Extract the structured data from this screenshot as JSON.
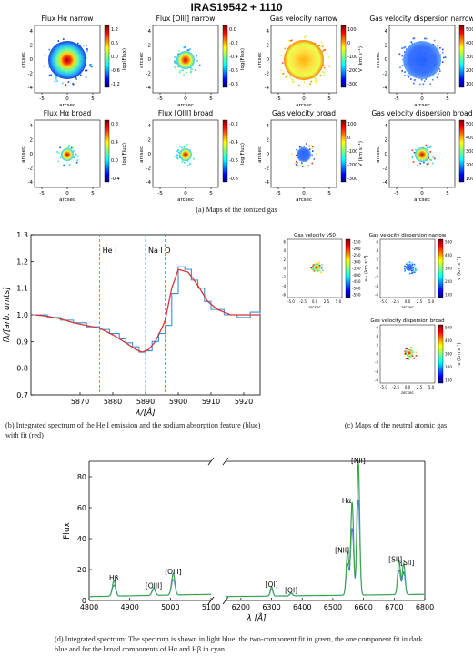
{
  "title": "IRAS19542 + 1110",
  "ionized_maps": [
    {
      "title": "Flux Hα narrow",
      "cbar_label": "log(Flux)",
      "ticks": [
        "1.2",
        "0.6",
        "0.0",
        "-0.6",
        "-1.2"
      ],
      "cmap": "jet"
    },
    {
      "title": "Flux [OIII] narrow",
      "cbar_label": "log(Flux)",
      "ticks": [
        "0.0",
        "-0.2",
        "-0.4",
        "-0.6",
        "-0.8"
      ],
      "cmap": "jet"
    },
    {
      "title": "Gas velocity narrow",
      "cbar_label": "V (km s⁻¹)",
      "ticks": [
        "100",
        "0",
        "-100",
        "-200",
        "-300"
      ],
      "cmap": "jet"
    },
    {
      "title": "Gas velocity dispersion narrow",
      "cbar_label": "σ (km s⁻¹)",
      "ticks": [
        "500",
        "400",
        "300",
        "200",
        "100"
      ],
      "cmap": "jet"
    },
    {
      "title": "Flux Hα broad",
      "cbar_label": "log(Flux)",
      "ticks": [
        "0.8",
        "0.4",
        "0.0",
        "-0.4"
      ],
      "cmap": "jet"
    },
    {
      "title": "Flux [OIII] broad",
      "cbar_label": "log(Flux)",
      "ticks": [
        "-0.2",
        "-0.4",
        "-0.6",
        "-0.8"
      ],
      "cmap": "jet"
    },
    {
      "title": "Gas velocity broad",
      "cbar_label": "V (km s⁻¹)",
      "ticks": [
        "100",
        "0",
        "-100",
        "-200",
        "-300"
      ],
      "cmap": "jet"
    },
    {
      "title": "Gas velocity dispersion broad",
      "cbar_label": "σ (km s⁻¹)",
      "ticks": [
        "500",
        "400",
        "300",
        "200",
        "100"
      ],
      "cmap": "jet"
    }
  ],
  "map_axes": {
    "xlabel": "arcsec",
    "ylabel": "arcsec",
    "xticks": [
      "-5",
      "0",
      "5"
    ],
    "yticks": [
      "4",
      "2",
      "0",
      "-2",
      "-4"
    ]
  },
  "caption_a": "(a) Maps of the ionized gas",
  "spectrum_b": {
    "xlabel": "λ/[Å]",
    "ylabel": "fλ/[arb. units]",
    "xticks": [
      "5870",
      "5880",
      "5890",
      "5900",
      "5910",
      "5920"
    ],
    "yticks": [
      "0.7",
      "0.8",
      "0.9",
      "1.0",
      "1.1",
      "1.2",
      "1.3"
    ],
    "lines": [
      {
        "label": "He I",
        "x": 5876
      },
      {
        "label": "Na I D",
        "x": 5890
      },
      {
        "label": "",
        "x": 5896
      }
    ]
  },
  "caption_b": "(b) Integrated spectrum of the He I emission and the sodium absorption feature (blue) with fit (red)",
  "neutral_maps": [
    {
      "title": "Gas velocity v50",
      "cbar_label": "v₅₀ (km s⁻¹)",
      "ticks": [
        "-150",
        "-200",
        "-250",
        "-300",
        "-350",
        "-400",
        "-450",
        "-500",
        "-550"
      ],
      "cmap": "jet"
    },
    {
      "title": "Gas velocity dispersion narrow",
      "cbar_label": "σ (km s⁻¹)",
      "ticks": [
        "500",
        "400",
        "300",
        "200",
        "100"
      ],
      "cmap": "jet"
    },
    {
      "title": "Gas velocity dispersion broad",
      "cbar_label": "σ (km s⁻¹)",
      "ticks": [
        "500",
        "400",
        "300",
        "200",
        "100"
      ],
      "cmap": "jet"
    }
  ],
  "neutral_axes": {
    "xlabel": "arcsec",
    "xticks": [
      "-5.0",
      "-2.5",
      "0.0",
      "2.5",
      "5.0"
    ],
    "yticks": [
      "6",
      "4",
      "2",
      "0",
      "-2",
      "-4",
      "-6"
    ]
  },
  "caption_c": "(c) Maps of the neutral atomic gas",
  "spectrum_d": {
    "ylabel": "Flux",
    "xlabel": "λ [Å]",
    "yticks": [
      "0",
      "20",
      "40",
      "60",
      "80"
    ],
    "xticks_left": [
      "4800",
      "4900",
      "5000",
      "5100"
    ],
    "xticks_right": [
      "6200",
      "6300",
      "6400",
      "6500",
      "6600",
      "6700",
      "6800"
    ],
    "line_labels": [
      "Hβ",
      "[OIII]",
      "[OIII]",
      "[OI]",
      "[OI]",
      "[NII]",
      "Hα",
      "[NII]",
      "[SII]",
      "[SII]"
    ]
  },
  "caption_d": "(d) Integrated spectrum: The spectrum is shown in light blue, the two-component fit in green, the one component fit in dark blue and for the broad components of Hα and Hβ in cyan.",
  "chart_data": [
    {
      "type": "line",
      "title": "",
      "xlabel": "λ/[Å]",
      "ylabel": "fλ/[arb. units]",
      "xlim": [
        5855,
        5925
      ],
      "ylim": [
        0.7,
        1.3
      ],
      "series": [
        {
          "color": "#3b8fd8",
          "x": [
            5856,
            5860,
            5864,
            5868,
            5872,
            5876,
            5879,
            5882,
            5884,
            5886,
            5888,
            5890,
            5892,
            5894,
            5896,
            5898,
            5900,
            5902,
            5904,
            5906,
            5908,
            5910,
            5914,
            5918,
            5922,
            5925
          ],
          "y": [
            1.0,
            0.99,
            0.98,
            0.97,
            0.955,
            0.945,
            0.93,
            0.91,
            0.895,
            0.88,
            0.86,
            0.865,
            0.9,
            0.93,
            0.96,
            1.08,
            1.18,
            1.17,
            1.13,
            1.1,
            1.05,
            1.02,
            1.0,
            0.99,
            1.01,
            1.0
          ]
        },
        {
          "color": "#d8353b",
          "x": [
            5856,
            5860,
            5864,
            5868,
            5872,
            5876,
            5880,
            5884,
            5887,
            5889,
            5891,
            5893,
            5895,
            5896,
            5898,
            5900,
            5903,
            5906,
            5909,
            5912,
            5916,
            5920,
            5925
          ],
          "y": [
            1.0,
            0.995,
            0.985,
            0.97,
            0.96,
            0.95,
            0.925,
            0.895,
            0.87,
            0.86,
            0.87,
            0.9,
            0.95,
            0.98,
            1.1,
            1.17,
            1.16,
            1.11,
            1.05,
            1.02,
            1.0,
            1.0,
            1.0
          ]
        }
      ]
    },
    {
      "type": "line",
      "title": "",
      "xlabel": "λ [Å]",
      "ylabel": "Flux",
      "ylim": [
        0,
        90
      ],
      "segments": [
        [
          4800,
          5100
        ],
        [
          6150,
          6800
        ]
      ],
      "lines": [
        {
          "x": 4861,
          "peak": 10
        },
        {
          "x": 4959,
          "peak": 5
        },
        {
          "x": 5007,
          "peak": 14
        },
        {
          "x": 6300,
          "peak": 6
        },
        {
          "x": 6364,
          "peak": 2
        },
        {
          "x": 6548,
          "peak": 28
        },
        {
          "x": 6563,
          "peak": 60
        },
        {
          "x": 6583,
          "peak": 86
        },
        {
          "x": 6716,
          "peak": 22
        },
        {
          "x": 6731,
          "peak": 20
        }
      ]
    }
  ]
}
